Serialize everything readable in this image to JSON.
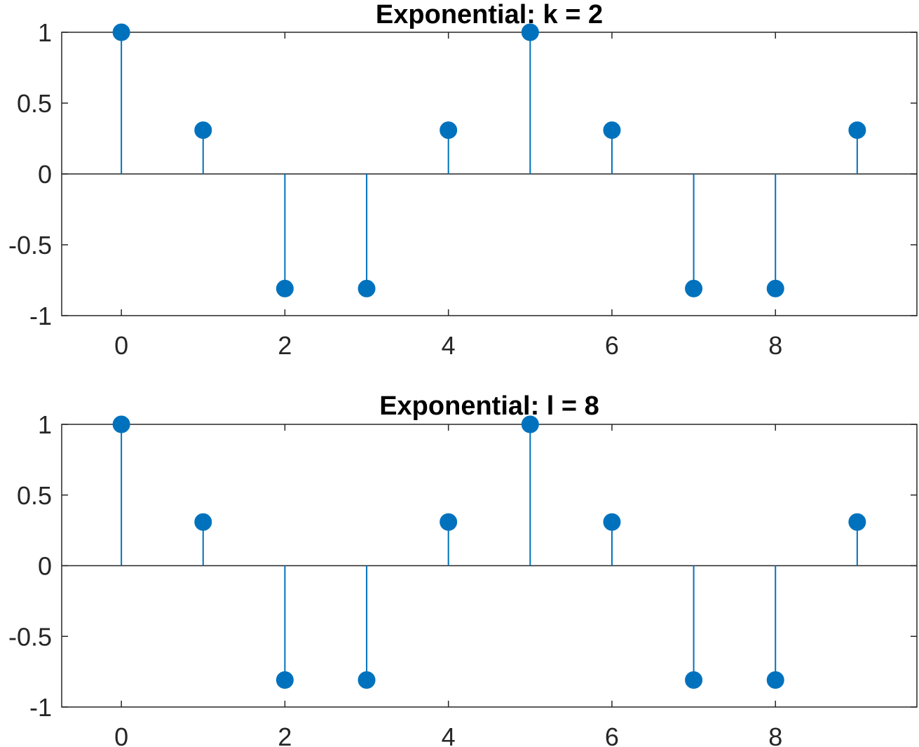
{
  "chart_data": [
    {
      "type": "stem",
      "title": "Exponential: k = 2",
      "xlabel": "",
      "ylabel": "",
      "x": [
        0,
        1,
        2,
        3,
        4,
        5,
        6,
        7,
        8,
        9
      ],
      "values": [
        1,
        0.309,
        -0.809,
        -0.809,
        0.309,
        1,
        0.309,
        -0.809,
        -0.809,
        0.309
      ],
      "xlim": [
        -0.73,
        9.73
      ],
      "ylim": [
        -1,
        1
      ],
      "xticks": [
        0,
        2,
        4,
        6,
        8
      ],
      "xtick_labels": [
        "0",
        "2",
        "4",
        "6",
        "8"
      ],
      "yticks": [
        1,
        0.5,
        0,
        -0.5,
        -1
      ],
      "ytick_labels": [
        "1",
        "0.5",
        "0",
        "-0.5",
        "-1"
      ],
      "grid": false,
      "color": "#0072BD"
    },
    {
      "type": "stem",
      "title": "Exponential: l = 8",
      "xlabel": "",
      "ylabel": "",
      "x": [
        0,
        1,
        2,
        3,
        4,
        5,
        6,
        7,
        8,
        9
      ],
      "values": [
        1,
        0.309,
        -0.809,
        -0.809,
        0.309,
        1,
        0.309,
        -0.809,
        -0.809,
        0.309
      ],
      "xlim": [
        -0.73,
        9.73
      ],
      "ylim": [
        -1,
        1
      ],
      "xticks": [
        0,
        2,
        4,
        6,
        8
      ],
      "xtick_labels": [
        "0",
        "2",
        "4",
        "6",
        "8"
      ],
      "yticks": [
        1,
        0.5,
        0,
        -0.5,
        -1
      ],
      "ytick_labels": [
        "1",
        "0.5",
        "0",
        "-0.5",
        "-1"
      ],
      "grid": false,
      "color": "#0072BD"
    }
  ]
}
